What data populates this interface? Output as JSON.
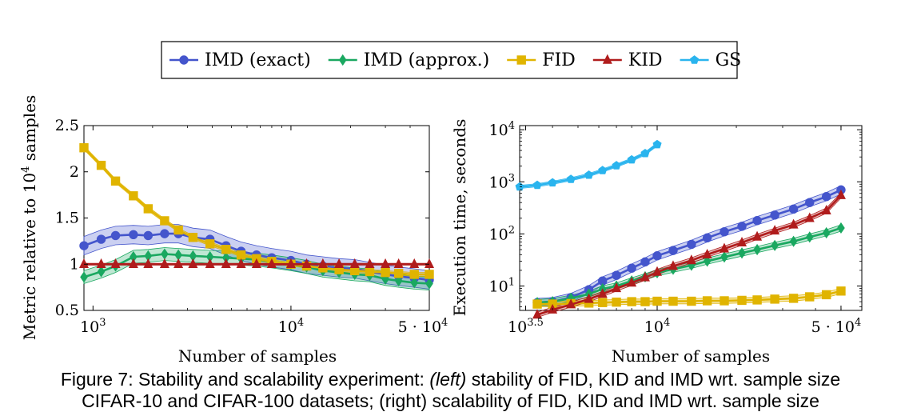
{
  "legend": [
    {
      "name": "IMD (exact)",
      "color": "#4455cc",
      "marker": "circle"
    },
    {
      "name": "IMD (approx.)",
      "color": "#1aa860",
      "marker": "diamond"
    },
    {
      "name": "FID",
      "color": "#e0b400",
      "marker": "square"
    },
    {
      "name": "KID",
      "color": "#b01c1c",
      "marker": "triangle"
    },
    {
      "name": "GS",
      "color": "#2ab4ee",
      "marker": "pentagon"
    }
  ],
  "caption": {
    "prefix": "Figure 7: Stability and scalability experiment: ",
    "left_tag": "(left)",
    "text": " stability of FID, KID and IMD wrt. sample size",
    "line2": "CIFAR-10 and CIFAR-100 datasets; (right) scalability of FID, KID and IMD wrt. sample size"
  },
  "chart_data": [
    {
      "type": "line",
      "xlabel": "Number of samples",
      "ylabel": "Metric relative to 10⁴ samples",
      "xscale": "log",
      "xlim": [
        900,
        50000
      ],
      "ylim": [
        0.5,
        2.5
      ],
      "yticks": [
        "0.5",
        "1",
        "1.5",
        "2",
        "2.5"
      ],
      "xticks": [
        {
          "value": 1000,
          "label": "10³"
        },
        {
          "value": 10000,
          "label": "10⁴"
        },
        {
          "value": 50000,
          "label": "5 · 10⁴"
        }
      ],
      "x": [
        900,
        1100,
        1300,
        1600,
        1900,
        2300,
        2700,
        3200,
        3900,
        4700,
        5600,
        6700,
        8000,
        10000,
        12000,
        14500,
        17500,
        21000,
        25000,
        30000,
        35000,
        42000,
        50000
      ],
      "series": [
        {
          "name": "IMD (exact)",
          "values": [
            1.2,
            1.27,
            1.31,
            1.32,
            1.31,
            1.33,
            1.33,
            1.29,
            1.27,
            1.2,
            1.14,
            1.1,
            1.07,
            1.04,
            1.0,
            0.98,
            0.96,
            0.95,
            0.92,
            0.89,
            0.87,
            0.85,
            0.83
          ],
          "band": 0.1
        },
        {
          "name": "IMD (approx.)",
          "values": [
            0.86,
            0.92,
            0.98,
            1.08,
            1.09,
            1.11,
            1.1,
            1.09,
            1.08,
            1.07,
            1.06,
            1.05,
            1.03,
            1.0,
            0.97,
            0.93,
            0.91,
            0.89,
            0.88,
            0.84,
            0.82,
            0.8,
            0.79
          ],
          "band": 0.07
        },
        {
          "name": "FID",
          "values": [
            2.26,
            2.07,
            1.9,
            1.74,
            1.6,
            1.47,
            1.37,
            1.29,
            1.22,
            1.16,
            1.1,
            1.06,
            1.03,
            1.0,
            0.98,
            0.96,
            0.94,
            0.93,
            0.92,
            0.91,
            0.9,
            0.89,
            0.89
          ],
          "band": 0.02
        },
        {
          "name": "KID",
          "values": [
            1.0,
            1.0,
            1.0,
            1.0,
            1.0,
            1.0,
            1.0,
            1.0,
            1.0,
            1.0,
            1.0,
            1.0,
            1.0,
            1.0,
            1.0,
            1.0,
            1.0,
            1.0,
            1.0,
            1.0,
            1.0,
            1.0,
            1.0
          ],
          "band": 0.01
        }
      ]
    },
    {
      "type": "line",
      "xlabel": "Number of samples",
      "ylabel": "Execution time, seconds",
      "xscale": "log",
      "yscale": "log",
      "xlim": [
        3000,
        60000
      ],
      "ylim": [
        3.4,
        12000
      ],
      "xticks": [
        {
          "value": 3162,
          "label": "10^3.5"
        },
        {
          "value": 10000,
          "label": "10⁴"
        },
        {
          "value": 50000,
          "label": "5 · 10⁴"
        }
      ],
      "yticks": [
        {
          "value": 10,
          "label": "10¹"
        },
        {
          "value": 100,
          "label": "10²"
        },
        {
          "value": 1000,
          "label": "10³"
        },
        {
          "value": 10000,
          "label": "10⁴"
        }
      ],
      "series": [
        {
          "name": "IMD (exact)",
          "x": [
            3500,
            4000,
            4700,
            5500,
            6200,
            7000,
            8000,
            9000,
            10000,
            11500,
            13500,
            15500,
            18000,
            21000,
            24000,
            28000,
            33000,
            38000,
            44000,
            50000
          ],
          "values": [
            4.8,
            5.0,
            6.0,
            8.5,
            12.5,
            16,
            22,
            29,
            38,
            48,
            63,
            84,
            110,
            140,
            180,
            230,
            300,
            400,
            520,
            700
          ],
          "band": 0.08
        },
        {
          "name": "IMD (approx.)",
          "x": [
            3500,
            4000,
            4700,
            5500,
            6200,
            7000,
            8000,
            9000,
            10000,
            11500,
            13500,
            15500,
            18000,
            21000,
            24000,
            28000,
            33000,
            38000,
            44000,
            50000
          ],
          "values": [
            4.8,
            5.0,
            5.8,
            7.0,
            8.8,
            10,
            12.5,
            15,
            18,
            21,
            25,
            30,
            36,
            43,
            50,
            60,
            72,
            87,
            105,
            130
          ],
          "band": 0.06
        },
        {
          "name": "FID",
          "x": [
            3500,
            4000,
            4700,
            5500,
            6200,
            7000,
            8000,
            9000,
            10000,
            11500,
            13500,
            15500,
            18000,
            21000,
            24000,
            28000,
            33000,
            38000,
            44000,
            50000
          ],
          "values": [
            4.5,
            4.5,
            4.6,
            4.7,
            4.8,
            4.9,
            5.0,
            5.0,
            5.1,
            5.1,
            5.1,
            5.2,
            5.2,
            5.3,
            5.4,
            5.6,
            5.8,
            6.2,
            6.8,
            8.0
          ],
          "band": 0.05
        },
        {
          "name": "KID",
          "x": [
            3500,
            4000,
            4700,
            5500,
            6200,
            7000,
            8000,
            9000,
            10000,
            11500,
            13500,
            15500,
            18000,
            21000,
            24000,
            28000,
            33000,
            38000,
            44000,
            50000
          ],
          "values": [
            2.8,
            3.5,
            4.4,
            5.6,
            7.0,
            9.0,
            11.5,
            14.5,
            18.5,
            24,
            31,
            40,
            52,
            68,
            88,
            115,
            150,
            200,
            280,
            550
          ],
          "band": 0.05
        },
        {
          "name": "GS",
          "x": [
            3000,
            3500,
            4000,
            4700,
            5500,
            6200,
            7000,
            8000,
            9000,
            10000
          ],
          "values": [
            800,
            860,
            960,
            1120,
            1350,
            1650,
            2050,
            2650,
            3500,
            5200
          ],
          "band": 0.03
        }
      ]
    }
  ]
}
